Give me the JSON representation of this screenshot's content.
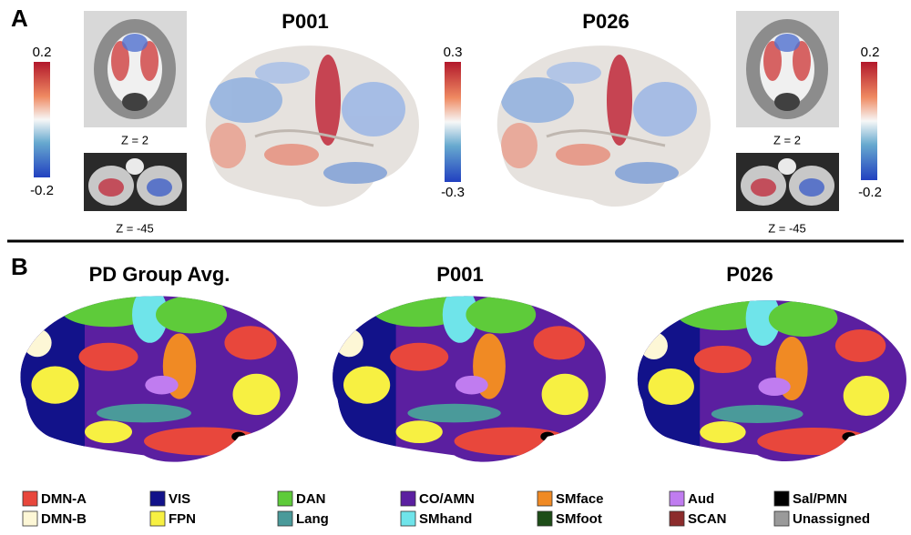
{
  "panel_a": {
    "label": "A",
    "left_colorbar": {
      "max": "0.2",
      "min": "-0.2"
    },
    "left_slices": [
      {
        "caption": "Z = 2"
      },
      {
        "caption": "Z = -45"
      }
    ],
    "brains": [
      {
        "title": "P001"
      },
      {
        "title": "P026"
      }
    ],
    "center_colorbar": {
      "max": "0.3",
      "min": "-0.3"
    },
    "right_slices": [
      {
        "caption": "Z = 2"
      },
      {
        "caption": "Z = -45"
      }
    ],
    "right_colorbar": {
      "max": "0.2",
      "min": "-0.2"
    }
  },
  "panel_b": {
    "label": "B",
    "brains": [
      {
        "title": "PD Group Avg."
      },
      {
        "title": "P001"
      },
      {
        "title": "P026"
      }
    ],
    "legend": [
      {
        "label": "DMN-A",
        "color": "#e8473c"
      },
      {
        "label": "DMN-B",
        "color": "#fdf7d6"
      },
      {
        "label": "VIS",
        "color": "#12128a"
      },
      {
        "label": "FPN",
        "color": "#f7f042"
      },
      {
        "label": "DAN",
        "color": "#5ecb3a"
      },
      {
        "label": "Lang",
        "color": "#4a9a9a"
      },
      {
        "label": "CO/AMN",
        "color": "#5b1fa0"
      },
      {
        "label": "SMhand",
        "color": "#6fe4ea"
      },
      {
        "label": "SMface",
        "color": "#f08a24"
      },
      {
        "label": "SMfoot",
        "color": "#1d4d18"
      },
      {
        "label": "Aud",
        "color": "#c07cf0"
      },
      {
        "label": "SCAN",
        "color": "#8c2c2c"
      },
      {
        "label": "Sal/PMN",
        "color": "#000000"
      },
      {
        "label": "Unassigned",
        "color": "#9a9a9a"
      }
    ]
  }
}
